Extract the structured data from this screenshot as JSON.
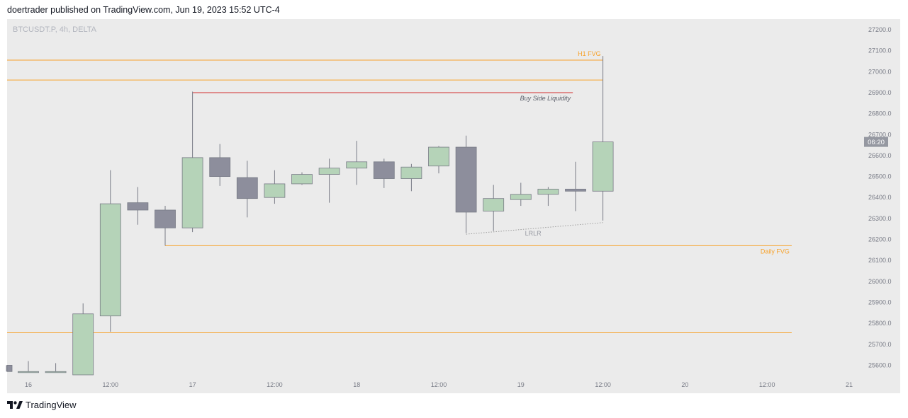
{
  "header": {
    "text": "doertrader published on TradingView.com, Jun 19, 2023 15:52 UTC-4"
  },
  "footer": {
    "brand": "TradingView"
  },
  "colors": {
    "plot_bg": "#ebebeb",
    "up_body": "#b5d3b8",
    "down_body": "#8d8e9c",
    "wick": "#787b86",
    "fvg": "#f7a22b",
    "liquidity": "#d32f2f",
    "lrlr": "#9e9e9e",
    "countdown_bg": "#9598a1"
  },
  "chart_data": {
    "type": "candlestick",
    "symbol_label": "BTCUSDT.P, 4h, DELTA",
    "y_ticks": [
      27200,
      27100,
      27000,
      26900,
      26800,
      26700,
      26600,
      26500,
      26400,
      26300,
      26200,
      26100,
      26000,
      25900,
      25800,
      25700,
      25600
    ],
    "ylim": [
      25560,
      27250
    ],
    "x_labels": [
      {
        "label": "16",
        "index": 0
      },
      {
        "label": "12:00",
        "index": 3
      },
      {
        "label": "17",
        "index": 6
      },
      {
        "label": "12:00",
        "index": 9
      },
      {
        "label": "18",
        "index": 12
      },
      {
        "label": "12:00",
        "index": 15
      },
      {
        "label": "19",
        "index": 18
      },
      {
        "label": "12:00",
        "index": 21
      },
      {
        "label": "20",
        "index": 24
      },
      {
        "label": "12:00",
        "index": 27
      },
      {
        "label": "21",
        "index": 30
      }
    ],
    "candles": [
      {
        "i": -0.8,
        "o": 25600,
        "h": 25600,
        "l": 25570,
        "c": 25570
      },
      {
        "i": 0,
        "o": 25570,
        "h": 25620,
        "l": 25570,
        "c": 25570
      },
      {
        "i": 1,
        "o": 25570,
        "h": 25610,
        "l": 25570,
        "c": 25570
      },
      {
        "i": 2,
        "o": 25540,
        "h": 25895,
        "l": 25540,
        "c": 25845
      },
      {
        "i": 3,
        "o": 25835,
        "h": 26530,
        "l": 25760,
        "c": 26370
      },
      {
        "i": 4,
        "o": 26375,
        "h": 26450,
        "l": 26270,
        "c": 26340
      },
      {
        "i": 5,
        "o": 26340,
        "h": 26360,
        "l": 26170,
        "c": 26255
      },
      {
        "i": 6,
        "o": 26255,
        "h": 26905,
        "l": 26235,
        "c": 26590
      },
      {
        "i": 7,
        "o": 26590,
        "h": 26655,
        "l": 26455,
        "c": 26500
      },
      {
        "i": 8,
        "o": 26495,
        "h": 26575,
        "l": 26305,
        "c": 26395
      },
      {
        "i": 9,
        "o": 26400,
        "h": 26530,
        "l": 26370,
        "c": 26465
      },
      {
        "i": 10,
        "o": 26465,
        "h": 26520,
        "l": 26460,
        "c": 26510
      },
      {
        "i": 11,
        "o": 26510,
        "h": 26585,
        "l": 26375,
        "c": 26540
      },
      {
        "i": 12,
        "o": 26540,
        "h": 26670,
        "l": 26460,
        "c": 26570
      },
      {
        "i": 13,
        "o": 26570,
        "h": 26585,
        "l": 26445,
        "c": 26490
      },
      {
        "i": 14,
        "o": 26490,
        "h": 26560,
        "l": 26430,
        "c": 26545
      },
      {
        "i": 15,
        "o": 26550,
        "h": 26645,
        "l": 26515,
        "c": 26640
      },
      {
        "i": 16,
        "o": 26640,
        "h": 26695,
        "l": 26230,
        "c": 26330
      },
      {
        "i": 17,
        "o": 26335,
        "h": 26460,
        "l": 26240,
        "c": 26395
      },
      {
        "i": 18,
        "o": 26390,
        "h": 26470,
        "l": 26360,
        "c": 26415
      },
      {
        "i": 19,
        "o": 26415,
        "h": 26450,
        "l": 26360,
        "c": 26440
      },
      {
        "i": 20,
        "o": 26440,
        "h": 26570,
        "l": 26335,
        "c": 26430
      },
      {
        "i": 21,
        "o": 26430,
        "h": 27075,
        "l": 26290,
        "c": 26665
      }
    ],
    "levels": [
      {
        "name": "h1-fvg-top",
        "price": 27055,
        "from_index": -1.2,
        "to_index": 21,
        "label": "H1 FVG",
        "color_key": "fvg"
      },
      {
        "name": "h1-fvg-bottom",
        "price": 26960,
        "from_index": -1.2,
        "to_index": 21,
        "label": "",
        "color_key": "fvg"
      },
      {
        "name": "buy-side-liquidity",
        "price": 26900,
        "from_index": 6,
        "to_index": 19.9,
        "label": "Buy Side Liquidity",
        "color_key": "liquidity"
      },
      {
        "name": "daily-fvg",
        "price": 26170,
        "from_index": 5,
        "to_index": 27.9,
        "label": "Daily FVG",
        "color_key": "fvg"
      },
      {
        "name": "lower-fvg",
        "price": 25755,
        "from_index": -1.2,
        "to_index": 27.9,
        "label": "",
        "color_key": "fvg"
      }
    ],
    "lrlr": {
      "label": "LRLR",
      "from": {
        "index": 16,
        "price": 26225
      },
      "to": {
        "index": 21,
        "price": 26280
      }
    },
    "countdown": "06:20",
    "countdown_price": 26665
  }
}
